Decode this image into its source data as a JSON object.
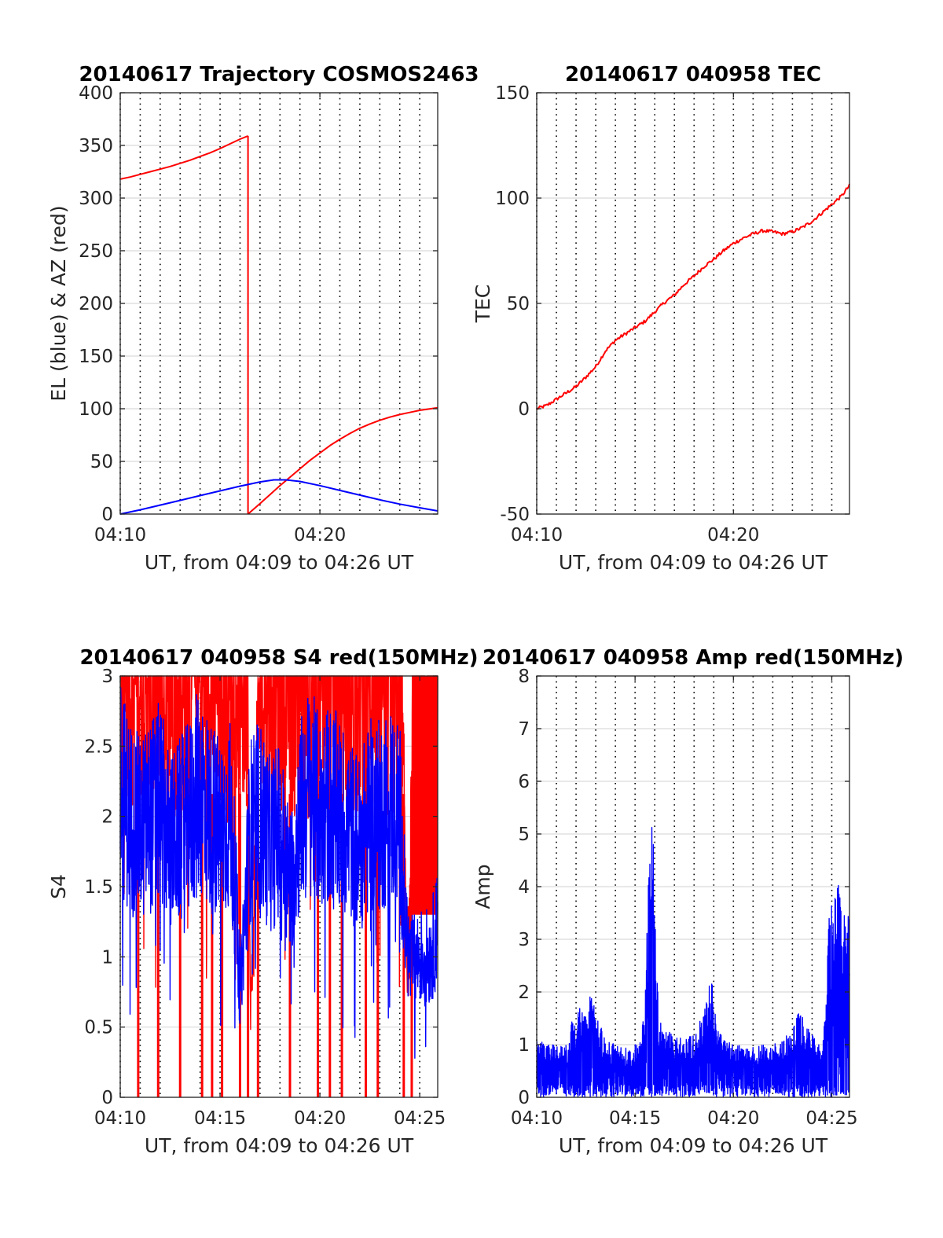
{
  "chart_data": [
    {
      "id": "traj",
      "type": "line",
      "title": "20140617 Trajectory COSMOS2463",
      "xlabel": "UT, from 04:09 to 04:26 UT",
      "ylabel": "EL (blue) & AZ (red)",
      "xlim": [
        10.0,
        25.9
      ],
      "ylim": [
        0,
        400
      ],
      "yticks": [
        0,
        50,
        100,
        150,
        200,
        250,
        300,
        350,
        400
      ],
      "xticks": [
        {
          "value": 10,
          "label": "04:10"
        },
        {
          "value": 20,
          "label": "04:20"
        }
      ],
      "colors": {
        "az": "#ff0000",
        "el": "#0000ff"
      },
      "series": [
        {
          "color": "#ff0000",
          "segments": [
            {
              "x": [
                10.0,
                10.5,
                11.0,
                11.5,
                12.0,
                12.5,
                13.0,
                13.5,
                14.0,
                14.5,
                15.0,
                15.5,
                16.0,
                16.4
              ],
              "y": [
                318,
                320,
                322.5,
                325,
                327.5,
                330,
                333,
                336,
                339.5,
                343,
                347,
                351.5,
                356,
                359
              ]
            },
            {
              "x": [
                16.4,
                16.4
              ],
              "y": [
                359,
                0
              ]
            },
            {
              "x": [
                16.4,
                17.0,
                17.5,
                18.0,
                18.5,
                19.0,
                19.5,
                20.0,
                20.5,
                21.0,
                21.5,
                22.0,
                22.5,
                23.0,
                23.5,
                24.0,
                24.5,
                25.0,
                25.9
              ],
              "y": [
                0,
                10,
                18.5,
                27,
                35,
                43,
                51,
                58,
                65,
                71,
                76.5,
                81.5,
                85.5,
                89,
                92,
                94.5,
                96.5,
                98.5,
                101
              ]
            }
          ]
        },
        {
          "color": "#0000ff",
          "segments": [
            {
              "x": [
                10.0,
                11.0,
                12.0,
                13.0,
                14.0,
                15.0,
                16.0,
                17.0,
                17.7,
                18.3,
                19.0,
                20.0,
                21.0,
                22.0,
                23.0,
                24.0,
                25.0,
                25.9
              ],
              "y": [
                0,
                4,
                8.5,
                13,
                17.5,
                22,
                26.5,
                30.5,
                32.5,
                32.5,
                31,
                27,
                22.5,
                18,
                13.5,
                9.5,
                6,
                3
              ]
            }
          ]
        }
      ]
    },
    {
      "id": "tec",
      "type": "line",
      "title": "20140617 040958 TEC",
      "xlabel": "UT, from 04:09 to 04:26 UT",
      "ylabel": "TEC",
      "xlim": [
        10.0,
        25.9
      ],
      "ylim": [
        -50,
        150
      ],
      "yticks": [
        -50,
        0,
        50,
        100,
        150
      ],
      "xticks": [
        {
          "value": 10,
          "label": "04:10"
        },
        {
          "value": 20,
          "label": "04:20"
        }
      ],
      "series": [
        {
          "color": "#ff0000",
          "segments": [
            {
              "x": [
                10.0,
                10.5,
                11.0,
                11.5,
                12.0,
                12.5,
                13.0,
                13.5,
                14.0,
                14.5,
                15.0,
                15.5,
                16.0,
                16.5,
                17.0,
                17.5,
                18.0,
                18.5,
                19.0,
                19.5,
                20.0,
                20.5,
                21.0,
                21.5,
                22.0,
                22.5,
                23.0,
                23.5,
                24.0,
                24.5,
                25.0,
                25.5,
                25.9
              ],
              "y": [
                0,
                1.5,
                4.5,
                7.5,
                10.5,
                15,
                20,
                27.5,
                32.5,
                35.5,
                38.5,
                41.5,
                46,
                50.5,
                54,
                59,
                63,
                67.5,
                71,
                75,
                78.5,
                81,
                83,
                84.5,
                84,
                83,
                84,
                86,
                89,
                93,
                97,
                101,
                106
              ]
            }
          ]
        }
      ]
    },
    {
      "id": "s4",
      "type": "line",
      "title": "20140617 040958 S4 red(150MHz)",
      "xlabel": "UT, from 04:09 to 04:26 UT",
      "ylabel": "S4",
      "xlim": [
        10.0,
        25.9
      ],
      "ylim": [
        0,
        3
      ],
      "yticks": [
        0,
        0.5,
        1,
        1.5,
        2,
        2.5,
        3
      ],
      "xticks": [
        {
          "value": 10,
          "label": "04:10"
        },
        {
          "value": 15,
          "label": "04:15"
        },
        {
          "value": 20,
          "label": "04:20"
        },
        {
          "value": 25,
          "label": "04:25"
        }
      ],
      "series": [
        {
          "color": "#ff0000",
          "render": "noise",
          "segments": [
            {
              "x": [
                10.0,
                16.4,
                16.5,
                16.6,
                17.0,
                24.0,
                24.4,
                24.5,
                24.7,
                25.9
              ],
              "y": [
                3,
                3,
                0.7,
                0.8,
                3,
                3,
                1.0,
                1.2,
                3,
                3
              ]
            }
          ],
          "dropouts": [
            10.9,
            11.9,
            13.0,
            14.1,
            14.6,
            15.1,
            16.0,
            16.4,
            16.9,
            18.5,
            19.9,
            20.5,
            21.1,
            22.3,
            22.9,
            24.2,
            24.6
          ]
        },
        {
          "color": "#0000ff",
          "render": "noise",
          "segments": [
            {
              "x": [
                10.0,
                10.5,
                11.0,
                11.5,
                12.0,
                12.5,
                13.0,
                13.5,
                14.0,
                14.5,
                15.0,
                15.5,
                15.8,
                16.0,
                16.5,
                17.0,
                17.5,
                18.0,
                18.5,
                19.0,
                19.5,
                20.0,
                20.5,
                21.0,
                21.5,
                22.0,
                22.5,
                23.0,
                23.5,
                24.0,
                24.3,
                24.5,
                25.0,
                25.5,
                25.9
              ],
              "y": [
                2.2,
                2.0,
                1.9,
                2.0,
                2.1,
                1.8,
                1.9,
                2.0,
                2.2,
                2.0,
                1.9,
                2.0,
                1.4,
                0.75,
                1.9,
                2.0,
                1.8,
                1.9,
                1.5,
                2.0,
                2.2,
                2.0,
                2.1,
                2.0,
                1.9,
                1.8,
                2.0,
                2.0,
                2.1,
                2.0,
                1.2,
                0.95,
                1.0,
                1.0,
                1.2
              ]
            }
          ]
        }
      ]
    },
    {
      "id": "amp",
      "type": "line",
      "title": "20140617 040958 Amp red(150MHz)",
      "xlabel": "UT, from 04:09 to 04:26 UT",
      "ylabel": "Amp",
      "xlim": [
        10.0,
        25.9
      ],
      "ylim": [
        0,
        8
      ],
      "yticks": [
        0,
        1,
        2,
        3,
        4,
        5,
        6,
        7,
        8
      ],
      "xticks": [
        {
          "value": 10,
          "label": "04:10"
        },
        {
          "value": 15,
          "label": "04:15"
        },
        {
          "value": 20,
          "label": "04:20"
        },
        {
          "value": 25,
          "label": "04:25"
        }
      ],
      "series": [
        {
          "color": "#0000ff",
          "render": "noise",
          "segments": [
            {
              "x": [
                10.0,
                10.5,
                11.0,
                11.5,
                11.8,
                12.2,
                12.5,
                12.8,
                13.0,
                13.4,
                13.8,
                14.2,
                14.6,
                15.0,
                15.3,
                15.5,
                15.7,
                15.85,
                16.0,
                16.2,
                16.5,
                17.0,
                17.5,
                18.0,
                18.5,
                18.8,
                19.0,
                19.2,
                19.5,
                20.0,
                20.5,
                21.0,
                21.5,
                22.0,
                22.5,
                23.0,
                23.3,
                23.6,
                24.0,
                24.4,
                24.6,
                24.8,
                25.0,
                25.3,
                25.6,
                25.9
              ],
              "y": [
                1.1,
                1.0,
                1.0,
                1.0,
                1.5,
                1.7,
                1.8,
                2.0,
                1.6,
                1.2,
                1.1,
                1.0,
                1.0,
                1.0,
                1.2,
                1.8,
                4.5,
                5.9,
                4.0,
                1.6,
                1.3,
                1.2,
                1.1,
                1.2,
                1.6,
                2.5,
                2.0,
                1.3,
                1.1,
                1.0,
                1.0,
                1.0,
                1.0,
                1.0,
                1.1,
                1.3,
                1.6,
                1.5,
                1.2,
                1.0,
                1.2,
                3.3,
                3.7,
                4.2,
                3.6,
                3.4
              ]
            }
          ]
        }
      ]
    }
  ]
}
